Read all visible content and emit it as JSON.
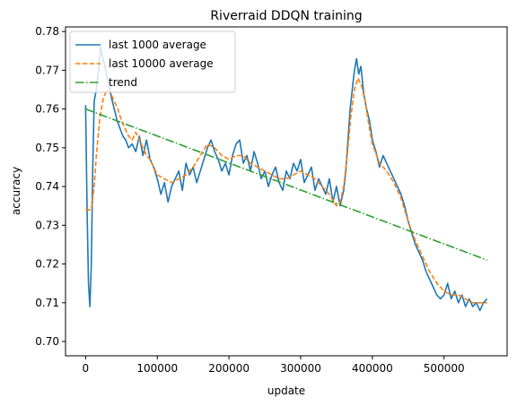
{
  "chart_data": {
    "type": "line",
    "title": "Riverraid DDQN training",
    "xlabel": "update",
    "ylabel": "accuracy",
    "xlim": [
      -28000,
      588000
    ],
    "ylim": [
      0.6963,
      0.7812
    ],
    "xticks": [
      0,
      100000,
      200000,
      300000,
      400000,
      500000
    ],
    "xtick_labels": [
      "0",
      "100000",
      "200000",
      "300000",
      "400000",
      "500000"
    ],
    "yticks": [
      0.7,
      0.71,
      0.72,
      0.73,
      0.74,
      0.75,
      0.76,
      0.77,
      0.78
    ],
    "ytick_labels": [
      "0.70",
      "0.71",
      "0.72",
      "0.73",
      "0.74",
      "0.75",
      "0.76",
      "0.77",
      "0.78"
    ],
    "grid": false,
    "legend_position": "top-left",
    "series": [
      {
        "name": "last 1000 average",
        "color": "#1f77b4",
        "style": "solid",
        "x": [
          0,
          2000,
          4000,
          6000,
          8000,
          10000,
          12000,
          15000,
          18000,
          21000,
          24000,
          27000,
          30000,
          33000,
          36000,
          40000,
          44000,
          48000,
          52000,
          56000,
          60000,
          65000,
          70000,
          75000,
          80000,
          85000,
          90000,
          95000,
          100000,
          105000,
          110000,
          115000,
          120000,
          125000,
          130000,
          135000,
          140000,
          145000,
          150000,
          155000,
          160000,
          165000,
          170000,
          175000,
          180000,
          185000,
          190000,
          195000,
          200000,
          205000,
          210000,
          215000,
          220000,
          225000,
          230000,
          235000,
          240000,
          245000,
          250000,
          255000,
          260000,
          265000,
          270000,
          275000,
          280000,
          285000,
          290000,
          295000,
          300000,
          305000,
          310000,
          315000,
          320000,
          325000,
          330000,
          335000,
          340000,
          345000,
          350000,
          355000,
          360000,
          363000,
          366000,
          369000,
          372000,
          375000,
          378000,
          381000,
          384000,
          388000,
          392000,
          396000,
          400000,
          405000,
          410000,
          415000,
          420000,
          425000,
          430000,
          435000,
          440000,
          445000,
          450000,
          455000,
          460000,
          465000,
          470000,
          475000,
          480000,
          485000,
          490000,
          495000,
          500000,
          505000,
          510000,
          515000,
          520000,
          525000,
          530000,
          535000,
          540000,
          545000,
          550000,
          555000,
          560000
        ],
        "y": [
          0.761,
          0.735,
          0.715,
          0.709,
          0.72,
          0.745,
          0.762,
          0.765,
          0.77,
          0.776,
          0.773,
          0.771,
          0.768,
          0.766,
          0.763,
          0.76,
          0.757,
          0.755,
          0.753,
          0.752,
          0.75,
          0.751,
          0.749,
          0.753,
          0.748,
          0.752,
          0.747,
          0.745,
          0.742,
          0.738,
          0.741,
          0.736,
          0.74,
          0.742,
          0.744,
          0.739,
          0.746,
          0.743,
          0.745,
          0.741,
          0.744,
          0.747,
          0.75,
          0.752,
          0.749,
          0.747,
          0.744,
          0.746,
          0.743,
          0.748,
          0.751,
          0.752,
          0.746,
          0.748,
          0.744,
          0.749,
          0.746,
          0.742,
          0.744,
          0.74,
          0.743,
          0.745,
          0.741,
          0.739,
          0.744,
          0.742,
          0.746,
          0.744,
          0.747,
          0.741,
          0.743,
          0.745,
          0.739,
          0.742,
          0.74,
          0.738,
          0.742,
          0.736,
          0.74,
          0.735,
          0.739,
          0.744,
          0.752,
          0.76,
          0.765,
          0.77,
          0.773,
          0.769,
          0.771,
          0.764,
          0.76,
          0.757,
          0.752,
          0.749,
          0.745,
          0.748,
          0.746,
          0.744,
          0.742,
          0.74,
          0.738,
          0.735,
          0.731,
          0.728,
          0.725,
          0.723,
          0.721,
          0.718,
          0.716,
          0.714,
          0.712,
          0.711,
          0.712,
          0.715,
          0.711,
          0.713,
          0.71,
          0.712,
          0.709,
          0.711,
          0.709,
          0.71,
          0.708,
          0.71,
          0.711
        ]
      },
      {
        "name": "last 10000 average",
        "color": "#ff7f0e",
        "style": "dashed",
        "x": [
          0,
          8000,
          12000,
          15000,
          20000,
          25000,
          30000,
          35000,
          40000,
          45000,
          50000,
          55000,
          60000,
          65000,
          70000,
          75000,
          80000,
          85000,
          90000,
          95000,
          100000,
          110000,
          120000,
          130000,
          140000,
          150000,
          160000,
          170000,
          180000,
          190000,
          200000,
          210000,
          220000,
          230000,
          240000,
          250000,
          260000,
          270000,
          280000,
          290000,
          300000,
          310000,
          320000,
          330000,
          340000,
          350000,
          355000,
          360000,
          365000,
          370000,
          375000,
          380000,
          385000,
          390000,
          395000,
          400000,
          410000,
          420000,
          430000,
          440000,
          450000,
          460000,
          470000,
          480000,
          490000,
          500000,
          510000,
          520000,
          530000,
          540000,
          550000,
          560000
        ],
        "y": [
          0.734,
          0.734,
          0.74,
          0.748,
          0.758,
          0.763,
          0.765,
          0.764,
          0.762,
          0.76,
          0.757,
          0.755,
          0.753,
          0.752,
          0.754,
          0.752,
          0.75,
          0.748,
          0.747,
          0.745,
          0.743,
          0.742,
          0.741,
          0.742,
          0.743,
          0.745,
          0.748,
          0.751,
          0.75,
          0.748,
          0.747,
          0.748,
          0.748,
          0.746,
          0.745,
          0.744,
          0.743,
          0.742,
          0.742,
          0.743,
          0.744,
          0.743,
          0.742,
          0.74,
          0.738,
          0.735,
          0.736,
          0.74,
          0.748,
          0.758,
          0.765,
          0.768,
          0.766,
          0.762,
          0.756,
          0.751,
          0.746,
          0.744,
          0.741,
          0.737,
          0.731,
          0.726,
          0.722,
          0.718,
          0.715,
          0.713,
          0.712,
          0.712,
          0.711,
          0.71,
          0.71,
          0.71
        ]
      },
      {
        "name": "trend",
        "color": "#2ca02c",
        "style": "dashdot",
        "x": [
          0,
          560000
        ],
        "y": [
          0.76,
          0.721
        ]
      }
    ]
  }
}
